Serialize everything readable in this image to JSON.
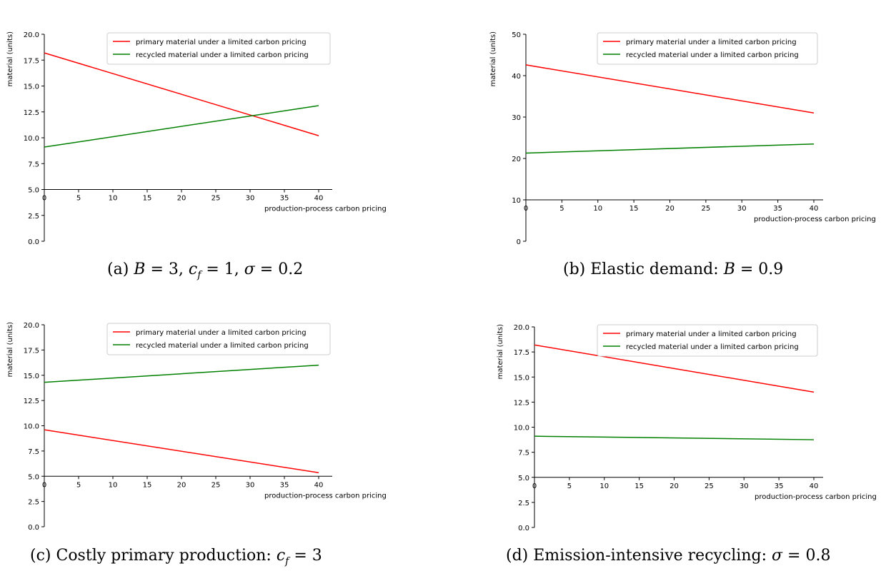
{
  "chart_data": [
    {
      "type": "line",
      "caption_prefix": "(a) ",
      "caption_math": "B = 3, c_f = 1, σ = 0.2",
      "xlabel": "production-process carbon pricing",
      "ylabel": "material (units)",
      "xlim": [
        0,
        40
      ],
      "ylim": [
        0,
        20
      ],
      "x_axis_at_y": 5,
      "xticks": [
        "0",
        "5",
        "10",
        "15",
        "20",
        "25",
        "30",
        "35",
        "40"
      ],
      "yticks": [
        "0.0",
        "2.5",
        "5.0",
        "7.5",
        "10.0",
        "12.5",
        "15.0",
        "17.5",
        "20.0"
      ],
      "ytick_values": [
        0,
        2.5,
        5,
        7.5,
        10,
        12.5,
        15,
        17.5,
        20
      ],
      "xtick_values": [
        0,
        5,
        10,
        15,
        20,
        25,
        30,
        35,
        40
      ],
      "legend_position": "top-right",
      "grid": false,
      "series": [
        {
          "name": "primary material under a limited carbon pricing",
          "color": "#ff0000",
          "x": [
            0,
            40
          ],
          "y": [
            18.2,
            10.2
          ]
        },
        {
          "name": "recycled material under a limited carbon pricing",
          "color": "#008000",
          "x": [
            0,
            40
          ],
          "y": [
            9.1,
            13.1
          ]
        }
      ]
    },
    {
      "type": "line",
      "caption_prefix": "(b) Elastic demand: ",
      "caption_math": "B = 0.9",
      "xlabel": "production-process carbon pricing",
      "ylabel": "material (units)",
      "xlim": [
        0,
        40
      ],
      "ylim": [
        0,
        50
      ],
      "x_axis_at_y": 10,
      "xticks": [
        "0",
        "5",
        "10",
        "15",
        "20",
        "25",
        "30",
        "35",
        "40"
      ],
      "yticks": [
        "0",
        "10",
        "20",
        "30",
        "40",
        "50"
      ],
      "ytick_values": [
        0,
        10,
        20,
        30,
        40,
        50
      ],
      "xtick_values": [
        0,
        5,
        10,
        15,
        20,
        25,
        30,
        35,
        40
      ],
      "legend_position": "top-right",
      "grid": false,
      "series": [
        {
          "name": "primary material under a limited carbon pricing",
          "color": "#ff0000",
          "x": [
            0,
            40
          ],
          "y": [
            42.6,
            31.0
          ]
        },
        {
          "name": "recycled material under a limited carbon pricing",
          "color": "#008000",
          "x": [
            0,
            40
          ],
          "y": [
            21.3,
            23.5
          ]
        }
      ]
    },
    {
      "type": "line",
      "caption_prefix": "(c) Costly primary production: ",
      "caption_math": "c_f = 3",
      "xlabel": "production-process carbon pricing",
      "ylabel": "material (units)",
      "xlim": [
        0,
        40
      ],
      "ylim": [
        0,
        20
      ],
      "x_axis_at_y": 5,
      "xticks": [
        "0",
        "5",
        "10",
        "15",
        "20",
        "25",
        "30",
        "35",
        "40"
      ],
      "yticks": [
        "0.0",
        "2.5",
        "5.0",
        "7.5",
        "10.0",
        "12.5",
        "15.0",
        "17.5",
        "20.0"
      ],
      "ytick_values": [
        0,
        2.5,
        5,
        7.5,
        10,
        12.5,
        15,
        17.5,
        20
      ],
      "xtick_values": [
        0,
        5,
        10,
        15,
        20,
        25,
        30,
        35,
        40
      ],
      "legend_position": "top-right",
      "grid": false,
      "series": [
        {
          "name": "primary material under a limited carbon pricing",
          "color": "#ff0000",
          "x": [
            0,
            40
          ],
          "y": [
            9.6,
            5.35
          ]
        },
        {
          "name": "recycled material under a limited carbon pricing",
          "color": "#008000",
          "x": [
            0,
            40
          ],
          "y": [
            14.3,
            16.0
          ]
        }
      ]
    },
    {
      "type": "line",
      "caption_prefix": "(d) Emission-intensive recycling: ",
      "caption_math": "σ = 0.8",
      "xlabel": "production-process carbon pricing",
      "ylabel": "material (units)",
      "xlim": [
        0,
        40
      ],
      "ylim": [
        0,
        20
      ],
      "x_axis_at_y": 5,
      "xticks": [
        "0",
        "5",
        "10",
        "15",
        "20",
        "25",
        "30",
        "35",
        "40"
      ],
      "yticks": [
        "0.0",
        "2.5",
        "5.0",
        "7.5",
        "10.0",
        "12.5",
        "15.0",
        "17.5",
        "20.0"
      ],
      "ytick_values": [
        0,
        2.5,
        5,
        7.5,
        10,
        12.5,
        15,
        17.5,
        20
      ],
      "xtick_values": [
        0,
        5,
        10,
        15,
        20,
        25,
        30,
        35,
        40
      ],
      "legend_position": "top-right",
      "grid": false,
      "series": [
        {
          "name": "primary material under a limited carbon pricing",
          "color": "#ff0000",
          "x": [
            0,
            40
          ],
          "y": [
            18.2,
            13.5
          ]
        },
        {
          "name": "recycled material under a limited carbon pricing",
          "color": "#008000",
          "x": [
            0,
            40
          ],
          "y": [
            9.1,
            8.75
          ]
        }
      ]
    }
  ]
}
